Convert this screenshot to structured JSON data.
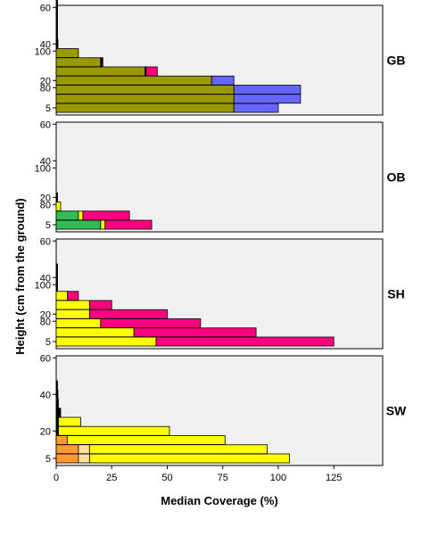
{
  "chart_data": {
    "type": "bar",
    "orientation": "horizontal",
    "layout": "stacked",
    "xlabel": "Median Coverage (%)",
    "ylabel": "Height (cm from the ground)",
    "xlim": [
      0,
      147
    ],
    "x_ticks": [
      "0",
      "25",
      "50",
      "75",
      "100",
      "125"
    ],
    "height_levels": [
      5,
      10,
      15,
      20,
      25,
      30,
      35,
      40,
      45,
      50,
      55,
      60,
      65,
      70,
      75,
      80,
      85,
      90,
      95,
      100,
      105
    ],
    "y_tick_labels": [
      "5",
      "20",
      "40",
      "60",
      "80",
      "100"
    ],
    "grid": false,
    "colors": {
      "olive": "#999900",
      "blue": "#6666ff",
      "magenta": "#ff0080",
      "green": "#33bb55",
      "yellow": "#ffff00",
      "orange": "#ff9933",
      "peach": "#ffe0a0",
      "black": "#000000"
    },
    "panels": [
      {
        "name": "GB",
        "bars": [
          {
            "height": 5,
            "segments": [
              {
                "color": "olive",
                "value": 80
              },
              {
                "color": "blue",
                "value": 20
              }
            ]
          },
          {
            "height": 10,
            "segments": [
              {
                "color": "olive",
                "value": 80
              },
              {
                "color": "blue",
                "value": 30
              }
            ]
          },
          {
            "height": 15,
            "segments": [
              {
                "color": "olive",
                "value": 80
              },
              {
                "color": "blue",
                "value": 30
              }
            ]
          },
          {
            "height": 20,
            "segments": [
              {
                "color": "olive",
                "value": 70
              },
              {
                "color": "blue",
                "value": 10
              }
            ]
          },
          {
            "height": 25,
            "segments": [
              {
                "color": "olive",
                "value": 40
              },
              {
                "color": "black",
                "value": 0.5
              },
              {
                "color": "magenta",
                "value": 5
              }
            ]
          },
          {
            "height": 30,
            "segments": [
              {
                "color": "olive",
                "value": 20
              },
              {
                "color": "black",
                "value": 1
              }
            ]
          },
          {
            "height": 35,
            "segments": [
              {
                "color": "olive",
                "value": 10
              }
            ]
          },
          {
            "height": 40,
            "segments": [
              {
                "color": "black",
                "value": 0.8
              }
            ]
          },
          {
            "height": 45,
            "segments": [
              {
                "color": "black",
                "value": 0.6
              }
            ]
          },
          {
            "height": 50,
            "segments": [
              {
                "color": "black",
                "value": 0.5
              }
            ]
          },
          {
            "height": 55,
            "segments": [
              {
                "color": "black",
                "value": 0.5
              }
            ]
          },
          {
            "height": 60,
            "segments": [
              {
                "color": "black",
                "value": 0.4
              }
            ]
          },
          {
            "height": 65,
            "segments": [
              {
                "color": "black",
                "value": 0.4
              }
            ]
          },
          {
            "height": 70,
            "segments": [
              {
                "color": "black",
                "value": 0.3
              }
            ]
          }
        ]
      },
      {
        "name": "OB",
        "bars": [
          {
            "height": 5,
            "segments": [
              {
                "color": "green",
                "value": 20
              },
              {
                "color": "yellow",
                "value": 2
              },
              {
                "color": "magenta",
                "value": 21
              }
            ]
          },
          {
            "height": 10,
            "segments": [
              {
                "color": "green",
                "value": 10
              },
              {
                "color": "yellow",
                "value": 2
              },
              {
                "color": "magenta",
                "value": 21
              }
            ]
          },
          {
            "height": 15,
            "segments": [
              {
                "color": "yellow",
                "value": 2
              }
            ]
          },
          {
            "height": 20,
            "segments": [
              {
                "color": "black",
                "value": 0.6
              }
            ]
          }
        ]
      },
      {
        "name": "SH",
        "bars": [
          {
            "height": 5,
            "segments": [
              {
                "color": "yellow",
                "value": 45
              },
              {
                "color": "magenta",
                "value": 80
              }
            ]
          },
          {
            "height": 10,
            "segments": [
              {
                "color": "yellow",
                "value": 35
              },
              {
                "color": "magenta",
                "value": 55
              }
            ]
          },
          {
            "height": 15,
            "segments": [
              {
                "color": "yellow",
                "value": 20
              },
              {
                "color": "magenta",
                "value": 45
              }
            ]
          },
          {
            "height": 20,
            "segments": [
              {
                "color": "yellow",
                "value": 15
              },
              {
                "color": "magenta",
                "value": 35
              }
            ]
          },
          {
            "height": 25,
            "segments": [
              {
                "color": "yellow",
                "value": 15
              },
              {
                "color": "magenta",
                "value": 10
              }
            ]
          },
          {
            "height": 30,
            "segments": [
              {
                "color": "yellow",
                "value": 5
              },
              {
                "color": "magenta",
                "value": 5
              }
            ]
          },
          {
            "height": 35,
            "segments": [
              {
                "color": "black",
                "value": 0.5
              }
            ]
          },
          {
            "height": 40,
            "segments": [
              {
                "color": "black",
                "value": 0.4
              }
            ]
          },
          {
            "height": 45,
            "segments": [
              {
                "color": "black",
                "value": 0.4
              }
            ]
          }
        ]
      },
      {
        "name": "SW",
        "bars": [
          {
            "height": 5,
            "segments": [
              {
                "color": "orange",
                "value": 10
              },
              {
                "color": "peach",
                "value": 5
              },
              {
                "color": "yellow",
                "value": 90
              }
            ]
          },
          {
            "height": 10,
            "segments": [
              {
                "color": "orange",
                "value": 10
              },
              {
                "color": "peach",
                "value": 5
              },
              {
                "color": "yellow",
                "value": 80
              }
            ]
          },
          {
            "height": 15,
            "segments": [
              {
                "color": "orange",
                "value": 5
              },
              {
                "color": "yellow",
                "value": 71
              }
            ]
          },
          {
            "height": 20,
            "segments": [
              {
                "color": "black",
                "value": 1
              },
              {
                "color": "yellow",
                "value": 50
              }
            ]
          },
          {
            "height": 25,
            "segments": [
              {
                "color": "black",
                "value": 1
              },
              {
                "color": "yellow",
                "value": 10
              }
            ]
          },
          {
            "height": 30,
            "segments": [
              {
                "color": "black",
                "value": 2
              }
            ]
          },
          {
            "height": 35,
            "segments": [
              {
                "color": "black",
                "value": 1
              }
            ]
          },
          {
            "height": 40,
            "segments": [
              {
                "color": "black",
                "value": 0.8
              }
            ]
          },
          {
            "height": 45,
            "segments": [
              {
                "color": "black",
                "value": 0.6
              }
            ]
          }
        ]
      }
    ]
  }
}
